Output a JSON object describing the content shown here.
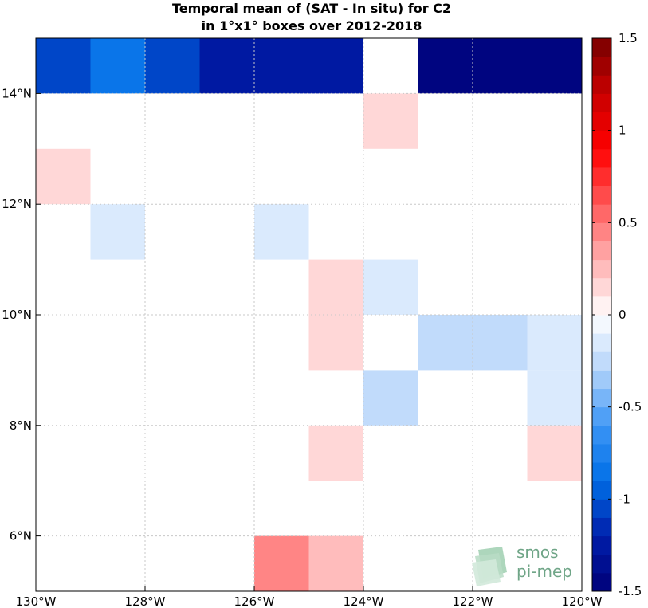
{
  "chart_data": {
    "type": "heatmap",
    "title_line1": "Temporal mean of (SAT - In situ) for C2",
    "title_line2": "in 1°x1° boxes over 2012-2018",
    "xlim": [
      -130,
      -120
    ],
    "ylim": [
      5,
      15
    ],
    "x_ticks": [
      {
        "value": -130,
        "label": "130°W"
      },
      {
        "value": -128,
        "label": "128°W"
      },
      {
        "value": -126,
        "label": "126°W"
      },
      {
        "value": -124,
        "label": "124°W"
      },
      {
        "value": -122,
        "label": "122°W"
      },
      {
        "value": -120,
        "label": "120°W"
      }
    ],
    "y_ticks": [
      {
        "value": 6,
        "label": "6°N"
      },
      {
        "value": 8,
        "label": "8°N"
      },
      {
        "value": 10,
        "label": "10°N"
      },
      {
        "value": 12,
        "label": "12°N"
      },
      {
        "value": 14,
        "label": "14°N"
      }
    ],
    "grid": true,
    "colorbar": {
      "min": -1.5,
      "max": 1.5,
      "levels": 30,
      "ticks": [
        {
          "value": 1.5,
          "label": "1.5"
        },
        {
          "value": 1,
          "label": "1"
        },
        {
          "value": 0.5,
          "label": "0.5"
        },
        {
          "value": 0,
          "label": "0"
        },
        {
          "value": -0.5,
          "label": "-0.5"
        },
        {
          "value": -1,
          "label": "-1"
        },
        {
          "value": -1.5,
          "label": "-1.5"
        }
      ]
    },
    "cells": [
      {
        "lon": -130,
        "lat": 14,
        "value": -1.05
      },
      {
        "lon": -129,
        "lat": 14,
        "value": -0.85
      },
      {
        "lon": -128,
        "lat": 14,
        "value": -1.05
      },
      {
        "lon": -127,
        "lat": 14,
        "value": -1.25
      },
      {
        "lon": -126,
        "lat": 14,
        "value": -1.25
      },
      {
        "lon": -125,
        "lat": 14,
        "value": -1.25
      },
      {
        "lon": -123,
        "lat": 14,
        "value": -1.45
      },
      {
        "lon": -122,
        "lat": 14,
        "value": -1.45
      },
      {
        "lon": -121,
        "lat": 14,
        "value": -1.45
      },
      {
        "lon": -124,
        "lat": 13,
        "value": 0.15
      },
      {
        "lon": -130,
        "lat": 12,
        "value": 0.15
      },
      {
        "lon": -129,
        "lat": 11,
        "value": -0.15
      },
      {
        "lon": -126,
        "lat": 11,
        "value": -0.15
      },
      {
        "lon": -125,
        "lat": 10,
        "value": 0.15
      },
      {
        "lon": -124,
        "lat": 10,
        "value": -0.15
      },
      {
        "lon": -125,
        "lat": 9,
        "value": 0.15
      },
      {
        "lon": -123,
        "lat": 9,
        "value": -0.25
      },
      {
        "lon": -122,
        "lat": 9,
        "value": -0.25
      },
      {
        "lon": -121,
        "lat": 9,
        "value": -0.15
      },
      {
        "lon": -124,
        "lat": 8,
        "value": -0.25
      },
      {
        "lon": -121,
        "lat": 8,
        "value": -0.15
      },
      {
        "lon": -125,
        "lat": 7,
        "value": 0.15
      },
      {
        "lon": -121,
        "lat": 7,
        "value": 0.15
      },
      {
        "lon": -126,
        "lat": 5,
        "value": 0.45
      },
      {
        "lon": -125,
        "lat": 5,
        "value": 0.25
      }
    ]
  },
  "logo": {
    "line1": "smos",
    "line2": "pi-mep",
    "color": "#6fa587"
  }
}
